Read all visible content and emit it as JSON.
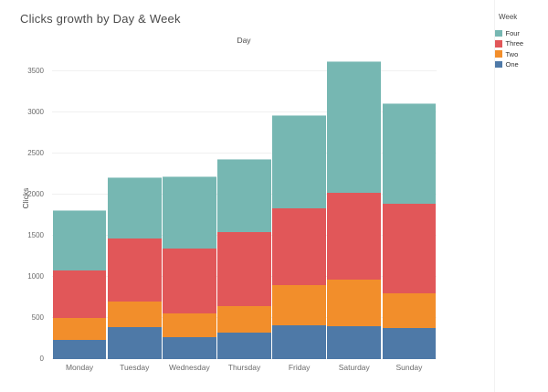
{
  "chart_data": {
    "type": "bar",
    "stacked": true,
    "title": "Clicks growth by Day & Week",
    "xlabel": "Day",
    "ylabel": "Clicks",
    "categories": [
      "Monday",
      "Tuesday",
      "Wednesday",
      "Thursday",
      "Friday",
      "Saturday",
      "Sunday"
    ],
    "series": [
      {
        "name": "One",
        "color": "#4E79A7",
        "values": [
          230,
          390,
          265,
          320,
          410,
          400,
          380
        ]
      },
      {
        "name": "Two",
        "color": "#F28E2B",
        "values": [
          270,
          305,
          290,
          320,
          490,
          565,
          420
        ]
      },
      {
        "name": "Three",
        "color": "#E15759",
        "values": [
          580,
          775,
          790,
          900,
          935,
          1060,
          1090
        ]
      },
      {
        "name": "Four",
        "color": "#76B7B2",
        "values": [
          735,
          745,
          880,
          890,
          1135,
          1595,
          1220
        ]
      }
    ],
    "totals": [
      1815,
      2215,
      2225,
      2430,
      2970,
      3620,
      3110
    ],
    "y_ticks": [
      0,
      500,
      1000,
      1500,
      2000,
      2500,
      3000,
      3500
    ],
    "ylim": [
      0,
      3700
    ],
    "grid": true,
    "legend": {
      "title": "Week",
      "position": "top-right",
      "items": [
        {
          "label": "Four",
          "color": "#76B7B2"
        },
        {
          "label": "Three",
          "color": "#E15759"
        },
        {
          "label": "Two",
          "color": "#F28E2B"
        },
        {
          "label": "One",
          "color": "#4E79A7"
        }
      ]
    }
  }
}
